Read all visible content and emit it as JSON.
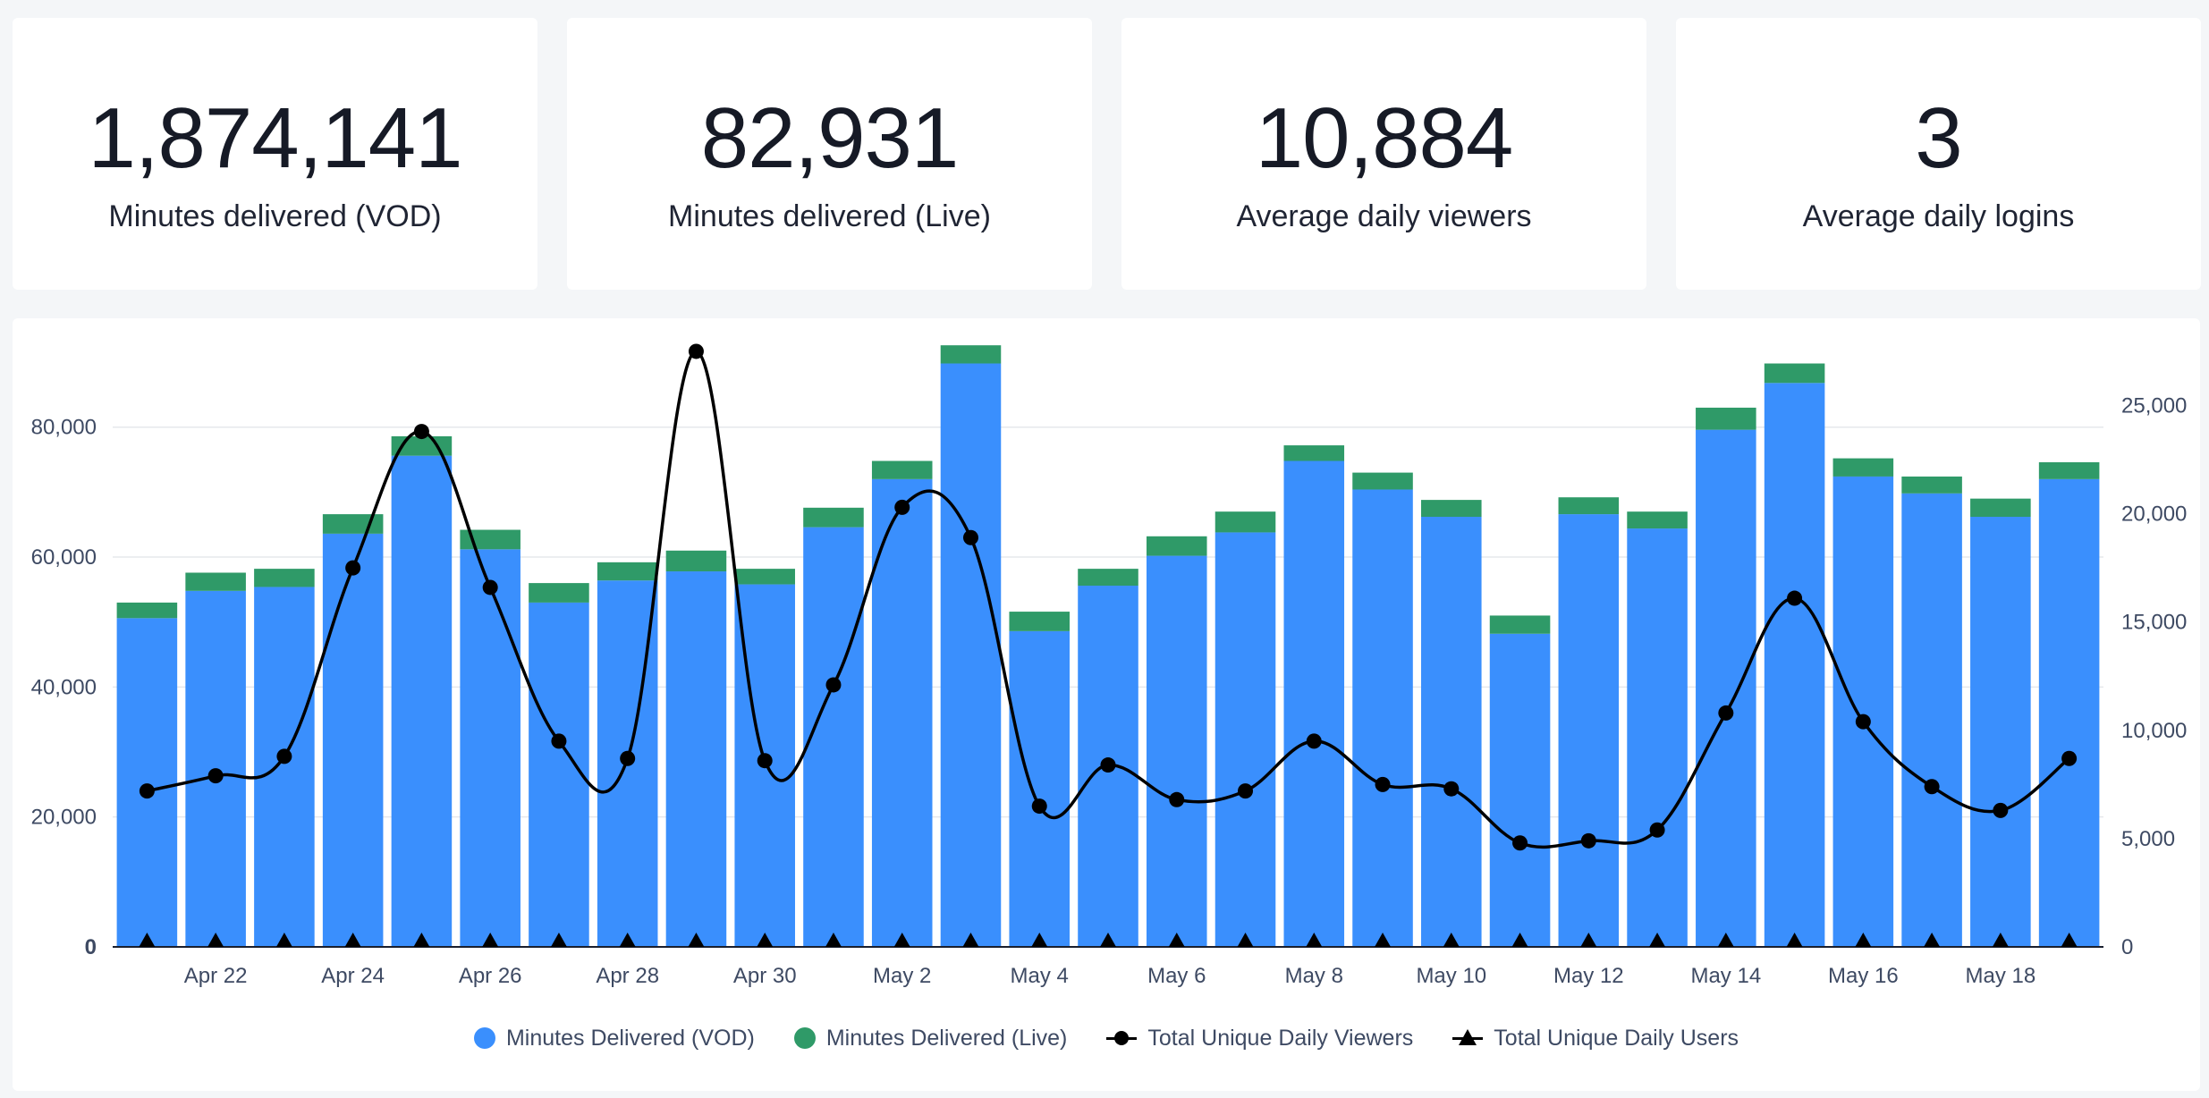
{
  "kpis": [
    {
      "value": "1,874,141",
      "label": "Minutes delivered (VOD)"
    },
    {
      "value": "82,931",
      "label": "Minutes delivered (Live)"
    },
    {
      "value": "10,884",
      "label": "Average daily viewers"
    },
    {
      "value": "3",
      "label": "Average daily logins"
    }
  ],
  "colors": {
    "vod": "#3a8ffd",
    "live": "#2f9a68",
    "viewers": "#000000",
    "users": "#000000",
    "grid": "#e6e8ec",
    "axis": "#3e4a63"
  },
  "chart_data": {
    "type": "bar",
    "stacked": true,
    "categories": [
      "Apr 21",
      "Apr 22",
      "Apr 23",
      "Apr 24",
      "Apr 25",
      "Apr 26",
      "Apr 27",
      "Apr 28",
      "Apr 29",
      "Apr 30",
      "May 1",
      "May 2",
      "May 3",
      "May 4",
      "May 5",
      "May 6",
      "May 7",
      "May 8",
      "May 9",
      "May 10",
      "May 11",
      "May 12",
      "May 13",
      "May 14",
      "May 15",
      "May 16",
      "May 17",
      "May 18",
      "May 19"
    ],
    "x_tick_labels": [
      "Apr 22",
      "Apr 24",
      "Apr 26",
      "Apr 28",
      "Apr 30",
      "May 2",
      "May 4",
      "May 6",
      "May 8",
      "May 10",
      "May 12",
      "May 14",
      "May 16",
      "May 18"
    ],
    "series": [
      {
        "name": "Minutes Delivered (VOD)",
        "axis": "left",
        "type": "bar",
        "values": [
          50600,
          54800,
          55400,
          63600,
          75600,
          61200,
          53000,
          56400,
          57800,
          55800,
          64600,
          72000,
          89800,
          48600,
          55600,
          60200,
          63800,
          74800,
          70400,
          66200,
          48200,
          66600,
          64400,
          79600,
          86800,
          72400,
          69800,
          66200,
          72000
        ]
      },
      {
        "name": "Minutes Delivered (Live)",
        "axis": "left",
        "type": "bar",
        "values": [
          2400,
          2800,
          2800,
          3000,
          3000,
          3000,
          3000,
          2800,
          3200,
          2400,
          3000,
          2800,
          2800,
          3000,
          2600,
          3000,
          3200,
          2400,
          2600,
          2600,
          2800,
          2600,
          2600,
          3400,
          3000,
          2800,
          2600,
          2800,
          2600
        ]
      },
      {
        "name": "Total Unique Daily Viewers",
        "axis": "right",
        "type": "line",
        "values": [
          7200,
          7900,
          8800,
          17500,
          23800,
          16600,
          9500,
          8700,
          27500,
          8600,
          12100,
          20300,
          18900,
          6500,
          8400,
          6800,
          7200,
          9500,
          7500,
          7300,
          4800,
          4900,
          5400,
          10800,
          16100,
          10400,
          7400,
          6300,
          8700
        ]
      },
      {
        "name": "Total Unique Daily Users",
        "axis": "right",
        "type": "line-marker",
        "values": [
          0,
          0,
          0,
          0,
          0,
          0,
          0,
          0,
          0,
          0,
          0,
          0,
          0,
          0,
          0,
          0,
          0,
          0,
          0,
          0,
          0,
          0,
          0,
          0,
          0,
          0,
          0,
          0,
          0
        ]
      }
    ],
    "y_left": {
      "ticks": [
        0,
        20000,
        40000,
        60000,
        80000
      ],
      "tick_labels": [
        "0",
        "20,000",
        "40,000",
        "60,000",
        "80,000"
      ],
      "ylim": [
        0,
        94000
      ]
    },
    "y_right": {
      "ticks": [
        0,
        5000,
        10000,
        15000,
        20000,
        25000
      ],
      "tick_labels": [
        "0",
        "5,000",
        "10,000",
        "15,000",
        "20,000",
        "25,000"
      ],
      "ylim": [
        0,
        28200
      ]
    },
    "grid": true,
    "legend": "bottom"
  }
}
